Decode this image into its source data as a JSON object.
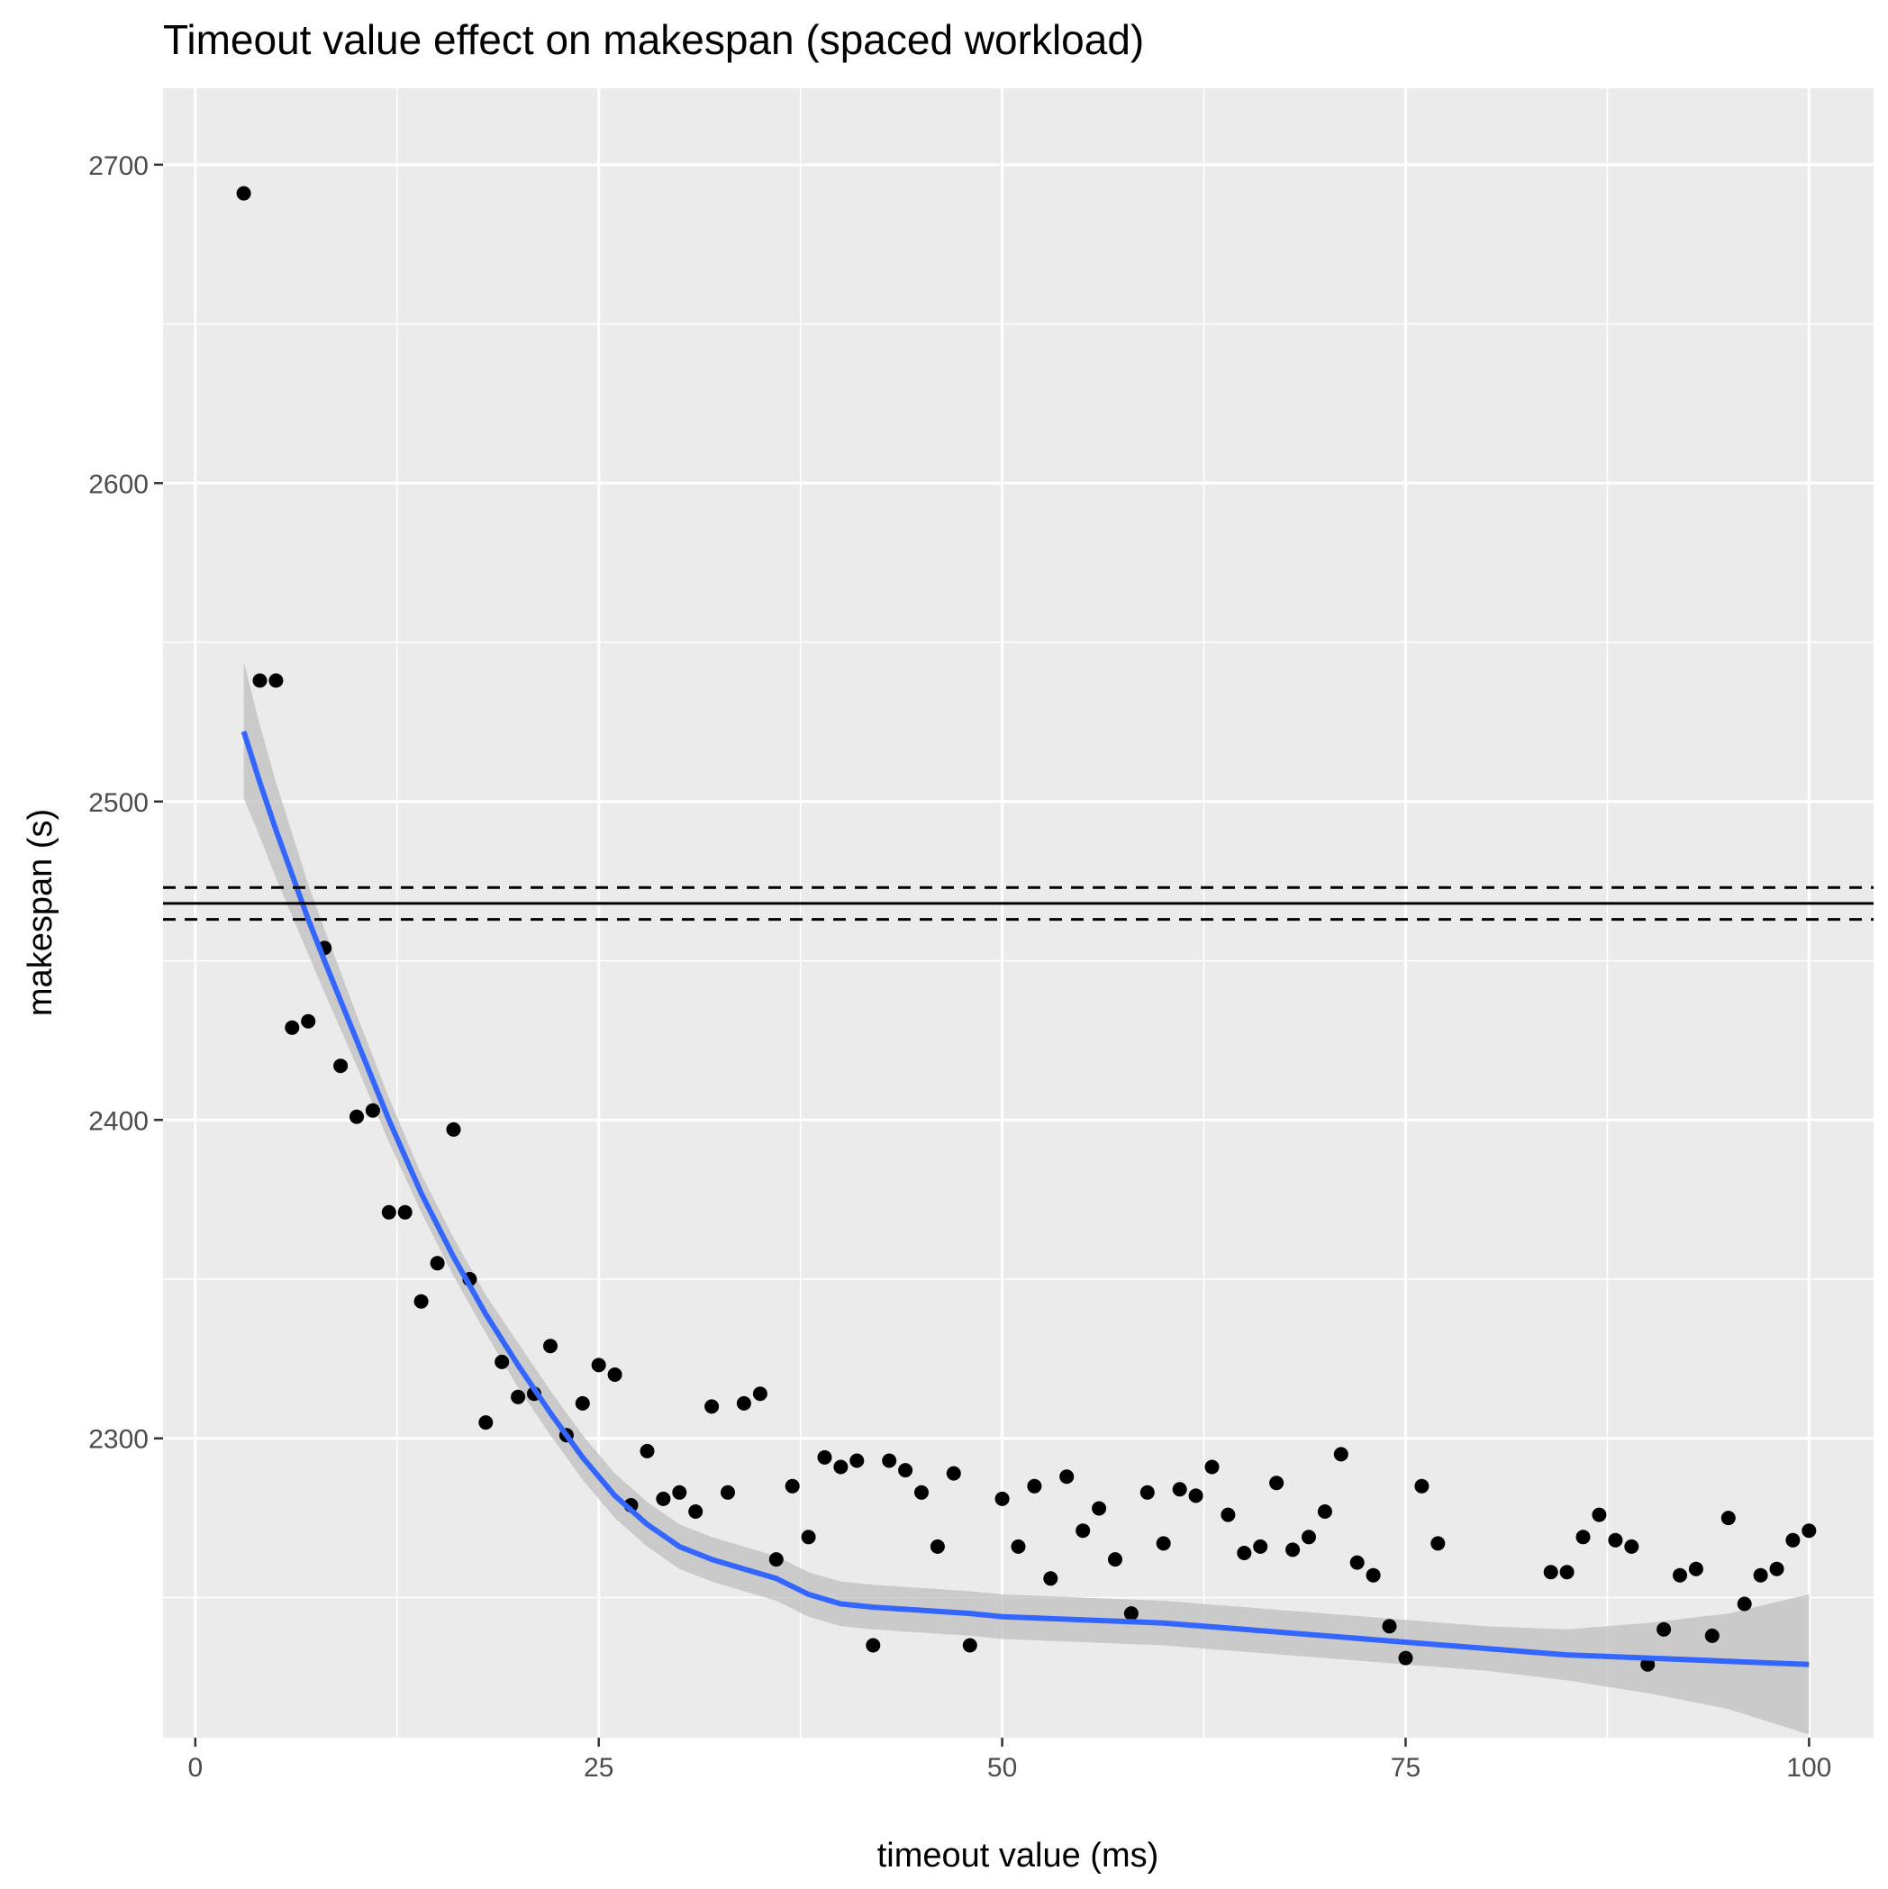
{
  "chart_data": {
    "type": "scatter",
    "title": "Timeout value effect on makespan (spaced workload)",
    "xlabel": "timeout value (ms)",
    "ylabel": "makespan (s)",
    "xlim": [
      -2,
      104
    ],
    "ylim": [
      2206,
      2724
    ],
    "x_ticks": [
      0,
      25,
      50,
      75,
      100
    ],
    "x_tick_labels": [
      "0",
      "25",
      "50",
      "75",
      "100"
    ],
    "y_ticks": [
      2300,
      2400,
      2500,
      2600,
      2700
    ],
    "y_tick_labels": [
      "2300",
      "2400",
      "2500",
      "2600",
      "2700"
    ],
    "grid": true,
    "legend": "none",
    "background": "#ebebeb",
    "point_color": "#000000",
    "smooth_color": "#3366ff",
    "band_color": "#bfbfbf",
    "points": {
      "x": [
        3,
        4,
        5,
        6,
        7,
        8,
        9,
        10,
        11,
        12,
        13,
        14,
        15,
        16,
        17,
        18,
        19,
        20,
        21,
        22,
        23,
        24,
        25,
        26,
        27,
        28,
        29,
        30,
        31,
        32,
        33,
        34,
        35,
        36,
        37,
        38,
        39,
        40,
        41,
        42,
        43,
        44,
        45,
        46,
        47,
        48,
        50,
        51,
        52,
        53,
        54,
        55,
        56,
        57,
        58,
        59,
        60,
        61,
        62,
        63,
        64,
        65,
        66,
        67,
        68,
        69,
        70,
        71,
        72,
        73,
        74,
        75,
        76,
        77,
        84,
        85,
        86,
        87,
        88,
        89,
        90,
        91,
        92,
        93,
        94,
        95,
        96,
        97,
        98,
        99,
        100
      ],
      "y": [
        2691,
        2538,
        2538,
        2429,
        2431,
        2454,
        2417,
        2401,
        2403,
        2371,
        2371,
        2343,
        2355,
        2397,
        2350,
        2305,
        2324,
        2313,
        2314,
        2329,
        2301,
        2311,
        2323,
        2320,
        2279,
        2296,
        2281,
        2283,
        2277,
        2310,
        2283,
        2311,
        2314,
        2262,
        2285,
        2269,
        2294,
        2291,
        2293,
        2235,
        2293,
        2290,
        2283,
        2266,
        2289,
        2235,
        2281,
        2266,
        2285,
        2256,
        2288,
        2271,
        2278,
        2262,
        2245,
        2283,
        2267,
        2284,
        2282,
        2291,
        2276,
        2264,
        2266,
        2286,
        2265,
        2269,
        2277,
        2295,
        2261,
        2257,
        2241,
        2231,
        2285,
        2267,
        2258,
        2258,
        2269,
        2276,
        2268,
        2266,
        2229,
        2240,
        2257,
        2259,
        2238,
        2275,
        2248,
        2257,
        2259,
        2268,
        2271
      ]
    },
    "smooth": {
      "x": [
        3,
        4,
        5,
        6,
        7,
        8,
        10,
        12,
        14,
        16,
        18,
        20,
        22,
        24,
        26,
        28,
        30,
        32,
        34,
        36,
        38,
        40,
        42,
        45,
        48,
        50,
        55,
        60,
        65,
        70,
        75,
        80,
        85,
        90,
        95,
        100
      ],
      "y": [
        2522,
        2506,
        2491,
        2477,
        2463,
        2450,
        2425,
        2400,
        2377,
        2357,
        2339,
        2323,
        2308,
        2294,
        2282,
        2273,
        2266,
        2262,
        2259,
        2256,
        2251,
        2248,
        2247,
        2246,
        2245,
        2244,
        2243,
        2242,
        2240,
        2238,
        2236,
        2234,
        2232,
        2231,
        2230,
        2229
      ],
      "lower": [
        2501,
        2489,
        2476,
        2464,
        2452,
        2440,
        2417,
        2393,
        2371,
        2351,
        2333,
        2316,
        2301,
        2287,
        2275,
        2266,
        2259,
        2255,
        2252,
        2249,
        2244,
        2241,
        2240,
        2239,
        2238,
        2237,
        2236,
        2235,
        2233,
        2231,
        2229,
        2227,
        2224,
        2220,
        2215,
        2207
      ],
      "upper": [
        2544,
        2524,
        2506,
        2490,
        2474,
        2460,
        2433,
        2407,
        2383,
        2363,
        2345,
        2330,
        2315,
        2301,
        2289,
        2280,
        2273,
        2269,
        2266,
        2263,
        2258,
        2255,
        2254,
        2253,
        2252,
        2251,
        2250,
        2249,
        2247,
        2245,
        2243,
        2241,
        2240,
        2242,
        2245,
        2251
      ]
    },
    "hlines": [
      {
        "y": 2473,
        "style": "dashed"
      },
      {
        "y": 2468,
        "style": "solid"
      },
      {
        "y": 2463,
        "style": "dashed"
      }
    ]
  }
}
